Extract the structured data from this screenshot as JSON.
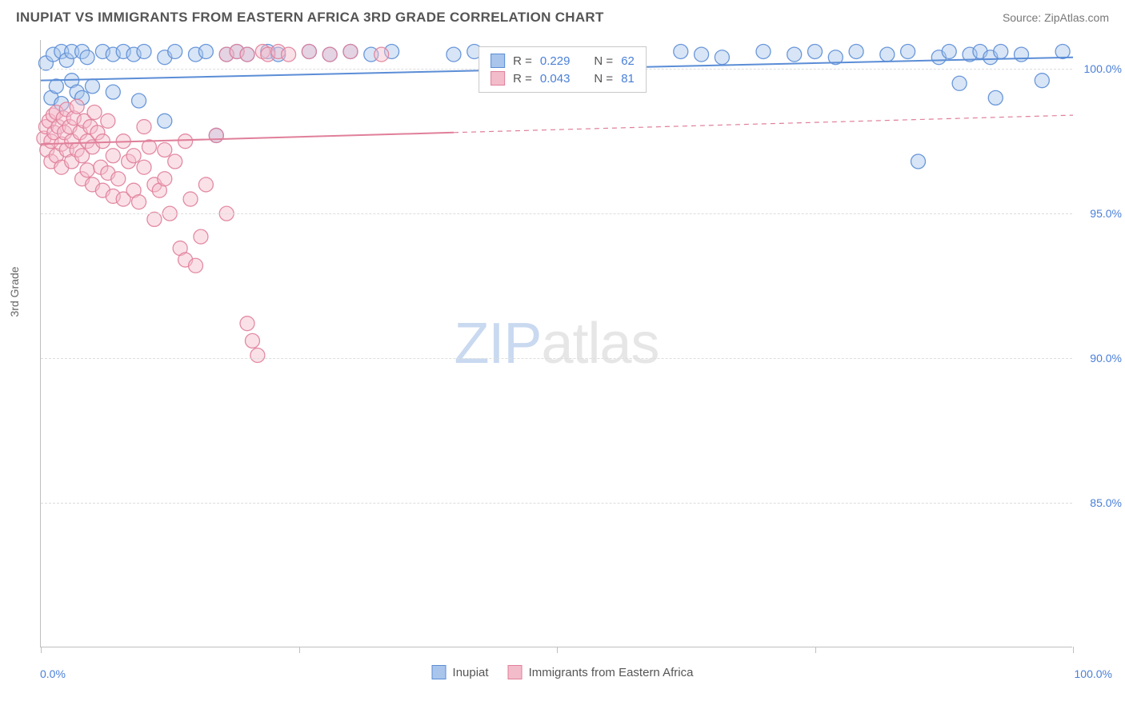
{
  "header": {
    "title": "INUPIAT VS IMMIGRANTS FROM EASTERN AFRICA 3RD GRADE CORRELATION CHART",
    "source": "Source: ZipAtlas.com"
  },
  "chart": {
    "type": "scatter",
    "y_axis_title": "3rd Grade",
    "xlim": [
      0,
      100
    ],
    "ylim": [
      80,
      101
    ],
    "x_ticks": [
      0,
      25,
      50,
      75,
      100
    ],
    "y_ticks": [
      85,
      90,
      95,
      100
    ],
    "y_tick_labels": [
      "85.0%",
      "90.0%",
      "95.0%",
      "100.0%"
    ],
    "x_min_label": "0.0%",
    "x_max_label": "100.0%",
    "grid_color": "#dddddd",
    "axis_color": "#bfbfbf",
    "label_color": "#4a7fd8",
    "background_color": "#ffffff",
    "marker_radius": 9,
    "marker_opacity": 0.45,
    "marker_stroke_opacity": 0.9,
    "line_width": 2,
    "series": [
      {
        "name": "Inupiat",
        "color": "#5b8dd6",
        "fill": "#a9c5ec",
        "r": 0.229,
        "n": 62,
        "trend": {
          "y_at_x0": 99.6,
          "y_at_x100": 100.4,
          "solid_until_x": 100
        },
        "points": [
          [
            0.5,
            100.2
          ],
          [
            1,
            99.0
          ],
          [
            1.2,
            100.5
          ],
          [
            1.5,
            99.4
          ],
          [
            2,
            100.6
          ],
          [
            2,
            98.8
          ],
          [
            2.5,
            100.3
          ],
          [
            3,
            99.6
          ],
          [
            3,
            100.6
          ],
          [
            3.5,
            99.2
          ],
          [
            4,
            100.6
          ],
          [
            4,
            99.0
          ],
          [
            4.5,
            100.4
          ],
          [
            5,
            99.4
          ],
          [
            6,
            100.6
          ],
          [
            7,
            100.5
          ],
          [
            7,
            99.2
          ],
          [
            8,
            100.6
          ],
          [
            9,
            100.5
          ],
          [
            9.5,
            98.9
          ],
          [
            10,
            100.6
          ],
          [
            12,
            100.4
          ],
          [
            12,
            98.2
          ],
          [
            13,
            100.6
          ],
          [
            15,
            100.5
          ],
          [
            16,
            100.6
          ],
          [
            17,
            97.7
          ],
          [
            18,
            100.5
          ],
          [
            19,
            100.6
          ],
          [
            20,
            100.5
          ],
          [
            22,
            100.6
          ],
          [
            23,
            100.5
          ],
          [
            26,
            100.6
          ],
          [
            28,
            100.5
          ],
          [
            30,
            100.6
          ],
          [
            32,
            100.5
          ],
          [
            34,
            100.6
          ],
          [
            40,
            100.5
          ],
          [
            42,
            100.6
          ],
          [
            46,
            100.5
          ],
          [
            62,
            100.6
          ],
          [
            64,
            100.5
          ],
          [
            66,
            100.4
          ],
          [
            70,
            100.6
          ],
          [
            73,
            100.5
          ],
          [
            75,
            100.6
          ],
          [
            77,
            100.4
          ],
          [
            79,
            100.6
          ],
          [
            82,
            100.5
          ],
          [
            84,
            100.6
          ],
          [
            85,
            96.8
          ],
          [
            87,
            100.4
          ],
          [
            88,
            100.6
          ],
          [
            89,
            99.5
          ],
          [
            90,
            100.5
          ],
          [
            91,
            100.6
          ],
          [
            92,
            100.4
          ],
          [
            92.5,
            99.0
          ],
          [
            93,
            100.6
          ],
          [
            95,
            100.5
          ],
          [
            97,
            99.6
          ],
          [
            99,
            100.6
          ]
        ]
      },
      {
        "name": "Immigrants from Eastern Africa",
        "color": "#e07f9a",
        "fill": "#f3bccb",
        "r": 0.043,
        "n": 81,
        "trend": {
          "y_at_x0": 97.4,
          "y_at_x100": 98.4,
          "solid_until_x": 40
        },
        "points": [
          [
            0.3,
            97.6
          ],
          [
            0.5,
            98.0
          ],
          [
            0.6,
            97.2
          ],
          [
            0.8,
            98.2
          ],
          [
            1,
            97.5
          ],
          [
            1,
            96.8
          ],
          [
            1.2,
            98.4
          ],
          [
            1.3,
            97.8
          ],
          [
            1.5,
            97.0
          ],
          [
            1.5,
            98.5
          ],
          [
            1.7,
            98.0
          ],
          [
            2,
            97.4
          ],
          [
            2,
            96.6
          ],
          [
            2.2,
            98.3
          ],
          [
            2.3,
            97.8
          ],
          [
            2.5,
            97.2
          ],
          [
            2.5,
            98.6
          ],
          [
            2.8,
            98.0
          ],
          [
            3,
            97.5
          ],
          [
            3,
            96.8
          ],
          [
            3.2,
            98.3
          ],
          [
            3.5,
            97.2
          ],
          [
            3.5,
            98.7
          ],
          [
            3.8,
            97.8
          ],
          [
            4,
            97.0
          ],
          [
            4,
            96.2
          ],
          [
            4.2,
            98.2
          ],
          [
            4.5,
            97.5
          ],
          [
            4.5,
            96.5
          ],
          [
            4.8,
            98.0
          ],
          [
            5,
            97.3
          ],
          [
            5,
            96.0
          ],
          [
            5.2,
            98.5
          ],
          [
            5.5,
            97.8
          ],
          [
            5.8,
            96.6
          ],
          [
            6,
            95.8
          ],
          [
            6,
            97.5
          ],
          [
            6.5,
            96.4
          ],
          [
            6.5,
            98.2
          ],
          [
            7,
            95.6
          ],
          [
            7,
            97.0
          ],
          [
            7.5,
            96.2
          ],
          [
            8,
            95.5
          ],
          [
            8,
            97.5
          ],
          [
            8.5,
            96.8
          ],
          [
            9,
            97.0
          ],
          [
            9,
            95.8
          ],
          [
            9.5,
            95.4
          ],
          [
            10,
            98.0
          ],
          [
            10,
            96.6
          ],
          [
            10.5,
            97.3
          ],
          [
            11,
            96.0
          ],
          [
            11,
            94.8
          ],
          [
            11.5,
            95.8
          ],
          [
            12,
            97.2
          ],
          [
            12,
            96.2
          ],
          [
            12.5,
            95.0
          ],
          [
            13,
            96.8
          ],
          [
            13.5,
            93.8
          ],
          [
            14,
            97.5
          ],
          [
            14,
            93.4
          ],
          [
            14.5,
            95.5
          ],
          [
            15,
            93.2
          ],
          [
            15.5,
            94.2
          ],
          [
            16,
            96.0
          ],
          [
            17,
            97.7
          ],
          [
            18,
            95.0
          ],
          [
            18,
            100.5
          ],
          [
            19,
            100.6
          ],
          [
            20,
            100.5
          ],
          [
            20,
            91.2
          ],
          [
            20.5,
            90.6
          ],
          [
            21,
            90.1
          ],
          [
            21.5,
            100.6
          ],
          [
            22,
            100.5
          ],
          [
            23,
            100.6
          ],
          [
            24,
            100.5
          ],
          [
            26,
            100.6
          ],
          [
            28,
            100.5
          ],
          [
            30,
            100.6
          ],
          [
            33,
            100.5
          ]
        ]
      }
    ]
  },
  "legend_top": {
    "rows": [
      {
        "swatch": 0,
        "r_label": "R =",
        "r_value": "0.229",
        "n_label": "N =",
        "n_value": "62"
      },
      {
        "swatch": 1,
        "r_label": "R =",
        "r_value": "0.043",
        "n_label": "N =",
        "n_value": "81"
      }
    ]
  },
  "legend_bottom": {
    "items": [
      {
        "swatch": 0,
        "label": "Inupiat"
      },
      {
        "swatch": 1,
        "label": "Immigrants from Eastern Africa"
      }
    ]
  },
  "watermark": {
    "part1": "ZIP",
    "part2": "atlas"
  }
}
